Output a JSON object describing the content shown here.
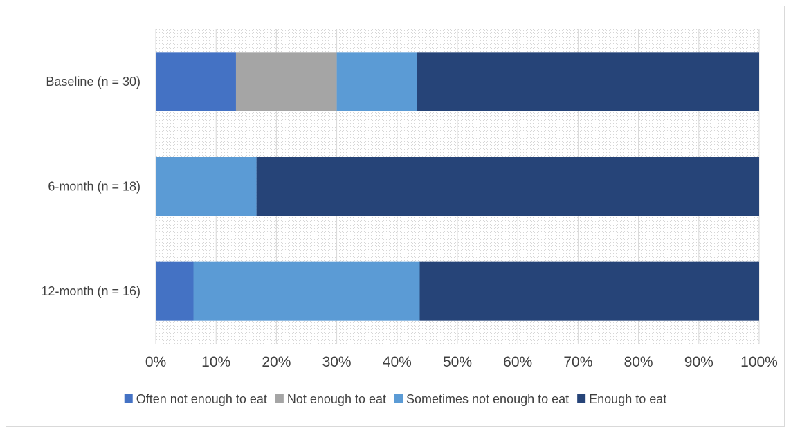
{
  "chart_data": {
    "type": "bar",
    "orientation": "horizontal",
    "stacked": true,
    "percent": true,
    "categories": [
      "Baseline (n = 30)",
      "6-month (n = 18)",
      "12-month (n = 16)"
    ],
    "series": [
      {
        "name": "Often not enough to eat",
        "values": [
          13.3,
          0,
          6.25
        ],
        "color": "#4472c4"
      },
      {
        "name": "Not enough to eat",
        "values": [
          16.7,
          0,
          0
        ],
        "color": "#a5a5a5"
      },
      {
        "name": "Sometimes not enough to eat",
        "values": [
          13.3,
          16.7,
          37.5
        ],
        "color": "#5b9bd5"
      },
      {
        "name": "Enough to eat",
        "values": [
          56.7,
          83.3,
          56.25
        ],
        "color": "#264478"
      }
    ],
    "xticks": [
      "0%",
      "10%",
      "20%",
      "30%",
      "40%",
      "50%",
      "60%",
      "70%",
      "80%",
      "90%",
      "100%"
    ],
    "xlim": [
      0,
      100
    ],
    "grid": true,
    "legend_position": "bottom",
    "title": "",
    "xlabel": "",
    "ylabel": ""
  }
}
